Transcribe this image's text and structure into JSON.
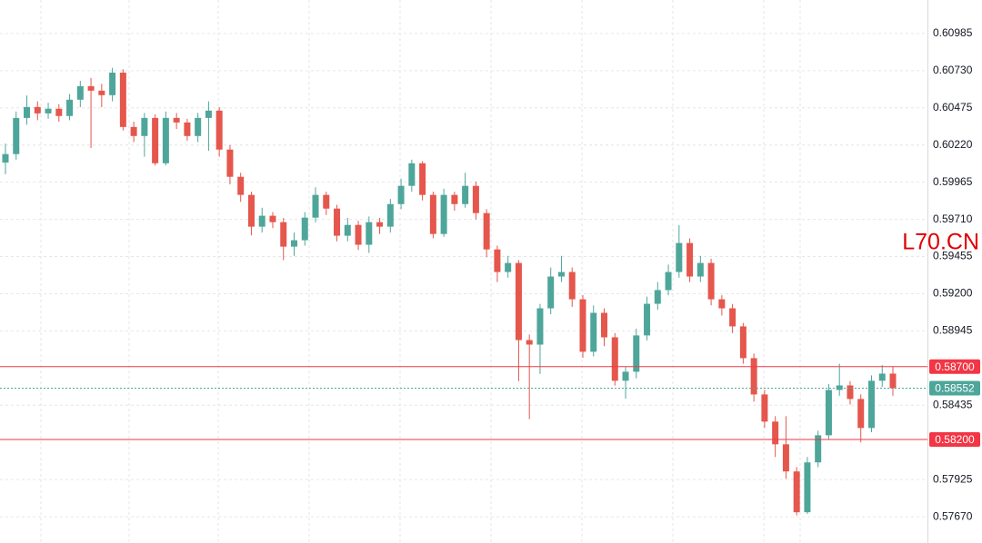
{
  "chart_data": {
    "type": "candlestick",
    "watermark": "L70.CN",
    "up_color": "#4ea69a",
    "down_color": "#e5564c",
    "grid": true,
    "ylim": [
      0.5749,
      0.61215
    ],
    "yticks": [
      0.60985,
      {
        "value": 0.6073,
        "label": "0.60730"
      },
      0.60475,
      {
        "value": 0.6022,
        "label": "0.60220"
      },
      0.59965,
      {
        "value": 0.5971,
        "label": "0.59710"
      },
      0.59455,
      {
        "value": 0.592,
        "label": "0.59200"
      },
      0.58945,
      0.58435,
      0.57925,
      {
        "value": 0.5767,
        "label": "0.57670"
      }
    ],
    "price_lines": [
      {
        "value": 0.587,
        "label": "0.58700",
        "color": "#f23645",
        "style": "solid"
      },
      {
        "value": 0.58552,
        "label": "0.58552",
        "color": "#4ea69a",
        "style": "dotted"
      },
      {
        "value": 0.582,
        "label": "0.58200",
        "color": "#f23645",
        "style": "solid"
      }
    ],
    "series": {
      "open": [
        0.601,
        0.60158,
        0.60406,
        0.60481,
        0.60437,
        0.60469,
        0.60419,
        0.60531,
        0.60624,
        0.60593,
        0.60562,
        0.60717,
        0.60344,
        0.60282,
        0.60406,
        0.60095,
        0.60406,
        0.60375,
        0.60282,
        0.60406,
        0.60456,
        0.60189,
        0.60002,
        0.59878,
        0.5966,
        0.59735,
        0.59691,
        0.59523,
        0.59567,
        0.59722,
        0.59878,
        0.59784,
        0.59598,
        0.59672,
        0.59536,
        0.59691,
        0.5966,
        0.59815,
        0.5994,
        0.60095,
        0.59878,
        0.5961,
        0.59878,
        0.59815,
        0.5994,
        0.59753,
        0.59504,
        0.59349,
        0.59411,
        0.58882,
        0.58851,
        0.591,
        0.59318,
        0.59349,
        0.59162,
        0.58802,
        0.59069,
        0.58901,
        0.58603,
        0.58665,
        0.58914,
        0.59131,
        0.59225,
        0.59349,
        0.59548,
        0.59318,
        0.59411,
        0.59162,
        0.591,
        0.58976,
        0.58758,
        0.58509,
        0.58323,
        0.58167,
        0.57981,
        0.57701,
        0.58043,
        0.58229,
        0.5854,
        0.58571,
        0.58478,
        0.58279,
        0.58603,
        0.58652
      ],
      "high": [
        0.6023,
        0.6045,
        0.6056,
        0.6052,
        0.6051,
        0.605,
        0.6057,
        0.6066,
        0.6068,
        0.6064,
        0.6075,
        0.6074,
        0.6038,
        0.6044,
        0.6043,
        0.6045,
        0.6044,
        0.604,
        0.6044,
        0.6052,
        0.6048,
        0.6022,
        0.6003,
        0.599,
        0.5979,
        0.5976,
        0.5972,
        0.5962,
        0.5976,
        0.5993,
        0.599,
        0.5981,
        0.5972,
        0.597,
        0.5973,
        0.5972,
        0.5985,
        0.5999,
        0.6012,
        0.6011,
        0.599,
        0.5992,
        0.599,
        0.6003,
        0.5997,
        0.5978,
        0.5953,
        0.5946,
        0.5943,
        0.5892,
        0.5913,
        0.5938,
        0.5946,
        0.5938,
        0.5919,
        0.5912,
        0.591,
        0.5893,
        0.587,
        0.5896,
        0.5918,
        0.5928,
        0.594,
        0.5967,
        0.5958,
        0.5946,
        0.5944,
        0.5919,
        0.5913,
        0.59,
        0.5879,
        0.5854,
        0.5836,
        0.5836,
        0.5801,
        0.5808,
        0.5826,
        0.5858,
        0.5872,
        0.586,
        0.5851,
        0.5864,
        0.5871,
        0.587
      ],
      "low": [
        0.6002,
        0.6012,
        0.6036,
        0.6039,
        0.604,
        0.6038,
        0.6039,
        0.6048,
        0.602,
        0.6048,
        0.6052,
        0.6032,
        0.6024,
        0.6014,
        0.6008,
        0.6008,
        0.6033,
        0.6025,
        0.6024,
        0.6018,
        0.6014,
        0.5995,
        0.5983,
        0.596,
        0.5962,
        0.5965,
        0.5943,
        0.5946,
        0.5953,
        0.5969,
        0.5974,
        0.5956,
        0.5956,
        0.595,
        0.5948,
        0.5961,
        0.5962,
        0.5978,
        0.599,
        0.5984,
        0.5958,
        0.5959,
        0.5977,
        0.5979,
        0.5971,
        0.5945,
        0.5928,
        0.5931,
        0.586,
        0.5834,
        0.5865,
        0.5906,
        0.5928,
        0.5911,
        0.5876,
        0.5877,
        0.5884,
        0.5857,
        0.5848,
        0.5862,
        0.5888,
        0.5909,
        0.5919,
        0.5931,
        0.5928,
        0.5928,
        0.5912,
        0.5905,
        0.5893,
        0.5872,
        0.5846,
        0.5828,
        0.5808,
        0.5793,
        0.5768,
        0.5769,
        0.5801,
        0.582,
        0.585,
        0.5844,
        0.5818,
        0.5825,
        0.5856,
        0.585
      ],
      "close": [
        0.60158,
        0.60406,
        0.60481,
        0.60437,
        0.60469,
        0.60419,
        0.60531,
        0.60624,
        0.60593,
        0.60562,
        0.60717,
        0.60344,
        0.60282,
        0.60406,
        0.60095,
        0.60406,
        0.60375,
        0.60282,
        0.60406,
        0.60456,
        0.60189,
        0.60002,
        0.59878,
        0.5966,
        0.59735,
        0.59691,
        0.59523,
        0.59567,
        0.59722,
        0.59878,
        0.59784,
        0.59598,
        0.59672,
        0.59536,
        0.59691,
        0.5966,
        0.59815,
        0.5994,
        0.60095,
        0.59878,
        0.5961,
        0.59878,
        0.59815,
        0.5994,
        0.59753,
        0.59504,
        0.59349,
        0.59411,
        0.58882,
        0.58851,
        0.591,
        0.59318,
        0.59349,
        0.59162,
        0.58802,
        0.59069,
        0.58901,
        0.58603,
        0.58665,
        0.58914,
        0.59131,
        0.59225,
        0.59349,
        0.59548,
        0.59318,
        0.59411,
        0.59162,
        0.591,
        0.58976,
        0.58758,
        0.58509,
        0.58323,
        0.58167,
        0.57981,
        0.57701,
        0.58043,
        0.58229,
        0.5854,
        0.58571,
        0.58478,
        0.58279,
        0.58603,
        0.58652,
        0.58552
      ]
    }
  }
}
